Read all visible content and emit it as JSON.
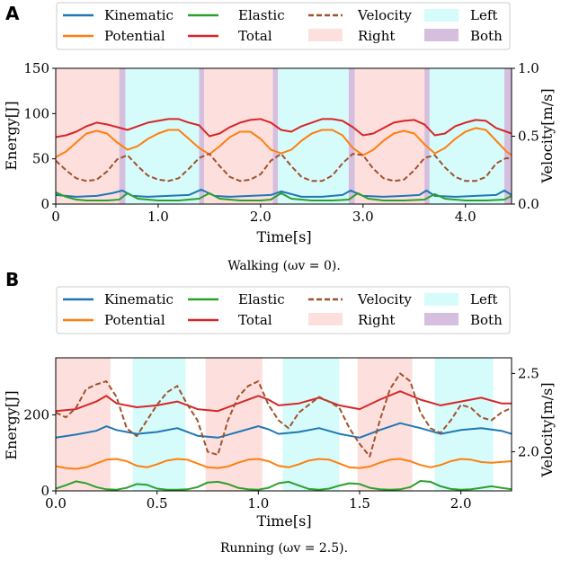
{
  "colors": {
    "kinematic": "#1f77b4",
    "potential": "#ff7f0e",
    "elastic": "#2ca02c",
    "total": "#d62728",
    "velocity": "#a0522d",
    "left": "#d6fbfb",
    "right": "#fde0dd",
    "both": "#d6bede"
  },
  "legend": {
    "kinematic": "Kinematic",
    "potential": "Potential",
    "elastic": "Elastic",
    "total": "Total",
    "velocity": "Velocity",
    "right": "Right",
    "left": "Left",
    "both": "Both"
  },
  "chart_data": [
    {
      "panel_label": "A",
      "type": "line",
      "caption": "Walking (ωv = 0).",
      "xlabel": "Time[s]",
      "ylabel": "Energy[J]",
      "y2label": "Velocity[m/s]",
      "xlim": [
        0,
        4.45
      ],
      "ylim": [
        0,
        150
      ],
      "y2lim": [
        0,
        1.0
      ],
      "xticks": [
        0,
        1,
        2,
        3,
        4
      ],
      "xtick_labels": [
        "0",
        "1.0",
        "2.0",
        "3.0",
        "4.0"
      ],
      "yticks": [
        0,
        50,
        100,
        150
      ],
      "y2ticks": [
        0,
        0.5,
        1.0
      ],
      "y2tick_labels": [
        "0.0",
        "0.5",
        "1.0"
      ],
      "phases": [
        {
          "phase": "right",
          "start": 0.0,
          "end": 0.62
        },
        {
          "phase": "both",
          "start": 0.62,
          "end": 0.68
        },
        {
          "phase": "left",
          "start": 0.68,
          "end": 1.4
        },
        {
          "phase": "both",
          "start": 1.4,
          "end": 1.45
        },
        {
          "phase": "right",
          "start": 1.45,
          "end": 2.12
        },
        {
          "phase": "both",
          "start": 2.12,
          "end": 2.17
        },
        {
          "phase": "left",
          "start": 2.17,
          "end": 2.86
        },
        {
          "phase": "both",
          "start": 2.86,
          "end": 2.92
        },
        {
          "phase": "right",
          "start": 2.92,
          "end": 3.6
        },
        {
          "phase": "both",
          "start": 3.6,
          "end": 3.65
        },
        {
          "phase": "left",
          "start": 3.65,
          "end": 4.38
        },
        {
          "phase": "both",
          "start": 4.38,
          "end": 4.45
        }
      ],
      "series": [
        {
          "name": "Total",
          "key": "total",
          "axis": "left",
          "x": [
            0,
            0.1,
            0.2,
            0.3,
            0.4,
            0.5,
            0.6,
            0.7,
            0.8,
            0.9,
            1.0,
            1.1,
            1.2,
            1.3,
            1.4,
            1.5,
            1.6,
            1.7,
            1.8,
            1.9,
            2.0,
            2.1,
            2.2,
            2.3,
            2.4,
            2.5,
            2.6,
            2.7,
            2.8,
            2.9,
            3.0,
            3.1,
            3.2,
            3.3,
            3.4,
            3.5,
            3.6,
            3.7,
            3.8,
            3.9,
            4.0,
            4.1,
            4.2,
            4.3,
            4.4,
            4.45
          ],
          "values": [
            74,
            76,
            80,
            86,
            90,
            88,
            85,
            82,
            86,
            90,
            92,
            94,
            94,
            90,
            87,
            75,
            78,
            85,
            90,
            93,
            94,
            90,
            82,
            80,
            86,
            90,
            94,
            94,
            92,
            85,
            76,
            78,
            84,
            90,
            92,
            93,
            88,
            76,
            78,
            86,
            90,
            93,
            92,
            84,
            80,
            78
          ]
        },
        {
          "name": "Potential",
          "key": "potential",
          "axis": "left",
          "x": [
            0,
            0.1,
            0.2,
            0.3,
            0.4,
            0.5,
            0.6,
            0.7,
            0.8,
            0.9,
            1.0,
            1.1,
            1.2,
            1.3,
            1.4,
            1.5,
            1.6,
            1.7,
            1.8,
            1.9,
            2.0,
            2.1,
            2.2,
            2.3,
            2.4,
            2.5,
            2.6,
            2.7,
            2.8,
            2.9,
            3.0,
            3.1,
            3.2,
            3.3,
            3.4,
            3.5,
            3.6,
            3.7,
            3.8,
            3.9,
            4.0,
            4.1,
            4.2,
            4.3,
            4.4,
            4.45
          ],
          "values": [
            52,
            58,
            68,
            78,
            81,
            78,
            68,
            60,
            64,
            72,
            78,
            82,
            82,
            72,
            62,
            55,
            64,
            74,
            80,
            80,
            72,
            60,
            56,
            60,
            70,
            78,
            82,
            82,
            76,
            62,
            54,
            60,
            70,
            78,
            81,
            78,
            66,
            56,
            62,
            72,
            80,
            84,
            82,
            70,
            58,
            54
          ]
        },
        {
          "name": "Kinematic",
          "key": "kinematic",
          "axis": "left",
          "x": [
            0,
            0.2,
            0.4,
            0.55,
            0.65,
            0.75,
            0.9,
            1.1,
            1.3,
            1.42,
            1.55,
            1.7,
            1.9,
            2.1,
            2.2,
            2.4,
            2.6,
            2.8,
            2.88,
            3.0,
            3.2,
            3.4,
            3.55,
            3.62,
            3.7,
            3.9,
            4.1,
            4.3,
            4.38,
            4.45
          ],
          "values": [
            10,
            8,
            9,
            12,
            15,
            9,
            8,
            9,
            10,
            16,
            9,
            8,
            9,
            10,
            14,
            8,
            8,
            10,
            15,
            9,
            8,
            9,
            10,
            15,
            9,
            8,
            9,
            10,
            15,
            10
          ]
        },
        {
          "name": "Elastic",
          "key": "elastic",
          "axis": "left",
          "x": [
            0,
            0.1,
            0.2,
            0.3,
            0.5,
            0.62,
            0.7,
            0.8,
            1.0,
            1.2,
            1.4,
            1.5,
            1.6,
            1.8,
            2.0,
            2.1,
            2.2,
            2.3,
            2.5,
            2.7,
            2.86,
            2.95,
            3.05,
            3.2,
            3.4,
            3.6,
            3.7,
            3.8,
            4.0,
            4.2,
            4.38,
            4.45
          ],
          "values": [
            13,
            8,
            5,
            4,
            4,
            5,
            12,
            6,
            4,
            4,
            6,
            12,
            6,
            4,
            4,
            5,
            12,
            6,
            4,
            4,
            5,
            12,
            6,
            4,
            4,
            5,
            11,
            6,
            4,
            4,
            5,
            9
          ]
        },
        {
          "name": "Velocity",
          "key": "velocity",
          "axis": "right",
          "x": [
            0,
            0.1,
            0.2,
            0.3,
            0.4,
            0.5,
            0.6,
            0.7,
            0.8,
            0.9,
            1.0,
            1.1,
            1.2,
            1.3,
            1.4,
            1.5,
            1.6,
            1.7,
            1.8,
            1.9,
            2.0,
            2.1,
            2.2,
            2.3,
            2.4,
            2.5,
            2.6,
            2.7,
            2.8,
            2.9,
            3.0,
            3.1,
            3.2,
            3.3,
            3.4,
            3.5,
            3.6,
            3.7,
            3.8,
            3.9,
            4.0,
            4.1,
            4.2,
            4.3,
            4.4,
            4.45
          ],
          "values": [
            0.32,
            0.25,
            0.19,
            0.17,
            0.18,
            0.24,
            0.33,
            0.36,
            0.28,
            0.21,
            0.18,
            0.17,
            0.19,
            0.26,
            0.34,
            0.37,
            0.28,
            0.2,
            0.17,
            0.18,
            0.22,
            0.32,
            0.37,
            0.28,
            0.2,
            0.17,
            0.17,
            0.21,
            0.3,
            0.37,
            0.36,
            0.26,
            0.19,
            0.17,
            0.18,
            0.25,
            0.34,
            0.36,
            0.27,
            0.2,
            0.17,
            0.17,
            0.2,
            0.3,
            0.34,
            0.33
          ]
        }
      ]
    },
    {
      "panel_label": "B",
      "type": "line",
      "caption": "Running (ωv = 2.5).",
      "xlabel": "Time[s]",
      "ylabel": "Energy[J]",
      "y2label": "Velocity[m/s]",
      "xlim": [
        0,
        2.25
      ],
      "ylim": [
        0,
        350
      ],
      "y2lim": [
        1.75,
        2.6
      ],
      "xticks": [
        0,
        0.5,
        1.0,
        1.5,
        2.0
      ],
      "xtick_labels": [
        "0.0",
        "0.5",
        "1.0",
        "1.5",
        "2.0"
      ],
      "yticks": [
        0,
        200
      ],
      "y2ticks": [
        2.0,
        2.5
      ],
      "y2tick_labels": [
        "2.0",
        "2.5"
      ],
      "phases": [
        {
          "phase": "right",
          "start": 0.0,
          "end": 0.27
        },
        {
          "phase": "left",
          "start": 0.38,
          "end": 0.64
        },
        {
          "phase": "right",
          "start": 0.74,
          "end": 1.02
        },
        {
          "phase": "left",
          "start": 1.12,
          "end": 1.4
        },
        {
          "phase": "right",
          "start": 1.49,
          "end": 1.76
        },
        {
          "phase": "left",
          "start": 1.87,
          "end": 2.16
        }
      ],
      "series": [
        {
          "name": "Total",
          "key": "total",
          "axis": "left",
          "x": [
            0,
            0.1,
            0.2,
            0.25,
            0.3,
            0.4,
            0.5,
            0.6,
            0.7,
            0.8,
            0.9,
            1.0,
            1.05,
            1.1,
            1.2,
            1.3,
            1.4,
            1.5,
            1.6,
            1.7,
            1.8,
            1.9,
            2.0,
            2.1,
            2.2,
            2.25
          ],
          "values": [
            210,
            215,
            235,
            250,
            230,
            220,
            225,
            235,
            215,
            210,
            230,
            250,
            240,
            225,
            230,
            245,
            225,
            215,
            240,
            262,
            240,
            225,
            235,
            245,
            230,
            230
          ]
        },
        {
          "name": "Kinematic",
          "key": "kinematic",
          "axis": "left",
          "x": [
            0,
            0.1,
            0.2,
            0.25,
            0.3,
            0.4,
            0.5,
            0.6,
            0.7,
            0.8,
            0.9,
            1.0,
            1.05,
            1.1,
            1.2,
            1.3,
            1.4,
            1.5,
            1.6,
            1.7,
            1.8,
            1.9,
            2.0,
            2.1,
            2.2,
            2.25
          ],
          "values": [
            140,
            148,
            158,
            170,
            160,
            150,
            155,
            165,
            145,
            140,
            155,
            170,
            162,
            150,
            155,
            165,
            150,
            140,
            160,
            178,
            165,
            150,
            160,
            165,
            158,
            150
          ]
        },
        {
          "name": "Potential",
          "key": "potential",
          "axis": "left",
          "x": [
            0,
            0.05,
            0.1,
            0.15,
            0.2,
            0.25,
            0.3,
            0.35,
            0.4,
            0.45,
            0.5,
            0.55,
            0.6,
            0.65,
            0.7,
            0.75,
            0.8,
            0.85,
            0.9,
            0.95,
            1.0,
            1.05,
            1.1,
            1.15,
            1.2,
            1.25,
            1.3,
            1.35,
            1.4,
            1.45,
            1.5,
            1.55,
            1.6,
            1.65,
            1.7,
            1.75,
            1.8,
            1.85,
            1.9,
            1.95,
            2.0,
            2.05,
            2.1,
            2.15,
            2.2,
            2.25
          ],
          "values": [
            65,
            60,
            58,
            62,
            72,
            82,
            84,
            78,
            66,
            62,
            70,
            80,
            84,
            82,
            72,
            62,
            60,
            64,
            74,
            82,
            84,
            78,
            66,
            62,
            70,
            80,
            84,
            82,
            72,
            62,
            60,
            64,
            74,
            82,
            84,
            78,
            68,
            62,
            68,
            78,
            84,
            82,
            76,
            74,
            76,
            78
          ]
        },
        {
          "name": "Elastic",
          "key": "elastic",
          "axis": "left",
          "x": [
            0,
            0.05,
            0.1,
            0.15,
            0.2,
            0.25,
            0.3,
            0.35,
            0.4,
            0.45,
            0.5,
            0.55,
            0.6,
            0.65,
            0.7,
            0.75,
            0.8,
            0.85,
            0.9,
            0.95,
            1.0,
            1.05,
            1.1,
            1.15,
            1.2,
            1.25,
            1.3,
            1.35,
            1.4,
            1.45,
            1.5,
            1.55,
            1.6,
            1.65,
            1.7,
            1.75,
            1.8,
            1.85,
            1.9,
            1.95,
            2.0,
            2.05,
            2.1,
            2.15,
            2.2,
            2.25
          ],
          "values": [
            6,
            15,
            25,
            20,
            10,
            4,
            3,
            8,
            18,
            16,
            6,
            3,
            3,
            4,
            10,
            22,
            24,
            18,
            8,
            4,
            3,
            8,
            20,
            24,
            14,
            5,
            3,
            6,
            14,
            20,
            18,
            8,
            4,
            3,
            4,
            10,
            26,
            24,
            12,
            5,
            3,
            4,
            8,
            12,
            8,
            4
          ]
        },
        {
          "name": "Velocity",
          "key": "velocity",
          "axis": "right",
          "x": [
            0,
            0.05,
            0.1,
            0.15,
            0.2,
            0.25,
            0.3,
            0.35,
            0.4,
            0.45,
            0.5,
            0.55,
            0.6,
            0.65,
            0.7,
            0.75,
            0.8,
            0.85,
            0.9,
            0.95,
            1.0,
            1.05,
            1.1,
            1.15,
            1.2,
            1.25,
            1.3,
            1.35,
            1.4,
            1.45,
            1.5,
            1.55,
            1.6,
            1.65,
            1.7,
            1.75,
            1.8,
            1.85,
            1.9,
            1.95,
            2.0,
            2.05,
            2.1,
            2.15,
            2.2,
            2.25
          ],
          "values": [
            2.25,
            2.22,
            2.28,
            2.4,
            2.43,
            2.45,
            2.35,
            2.15,
            2.1,
            2.2,
            2.3,
            2.38,
            2.42,
            2.3,
            2.2,
            2.0,
            1.98,
            2.2,
            2.35,
            2.42,
            2.45,
            2.3,
            2.2,
            2.15,
            2.25,
            2.3,
            2.35,
            2.32,
            2.28,
            2.15,
            2.05,
            1.97,
            2.2,
            2.4,
            2.5,
            2.45,
            2.25,
            2.15,
            2.12,
            2.2,
            2.3,
            2.28,
            2.22,
            2.2,
            2.25,
            2.28
          ]
        }
      ]
    }
  ]
}
